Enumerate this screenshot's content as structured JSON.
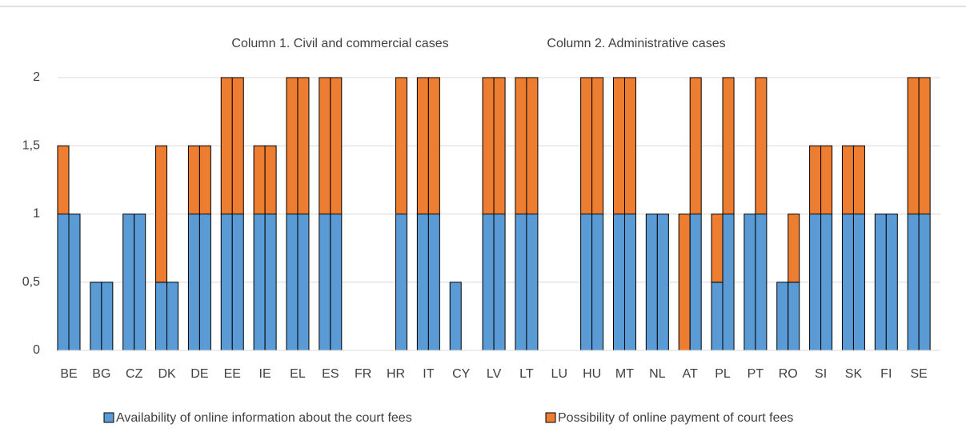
{
  "chart_data": {
    "type": "grouped-stacked-bar",
    "column_labels": [
      "Column 1. Civil and commercial cases",
      "Column 2. Administrative cases"
    ],
    "categories": [
      "BE",
      "BG",
      "CZ",
      "DK",
      "DE",
      "EE",
      "IE",
      "EL",
      "ES",
      "FR",
      "HR",
      "IT",
      "CY",
      "LV",
      "LT",
      "LU",
      "HU",
      "MT",
      "NL",
      "AT",
      "PL",
      "PT",
      "RO",
      "SI",
      "SK",
      "FI",
      "SE"
    ],
    "series": [
      {
        "name": "Availability of online information about the court fees",
        "color": "#5b9bd5",
        "values": [
          [
            1,
            1
          ],
          [
            0.5,
            0.5
          ],
          [
            1,
            1
          ],
          [
            0.5,
            0.5
          ],
          [
            1,
            1
          ],
          [
            1,
            1
          ],
          [
            1,
            1
          ],
          [
            1,
            1
          ],
          [
            1,
            1
          ],
          [
            0,
            0
          ],
          [
            0,
            1
          ],
          [
            1,
            1
          ],
          [
            0.5,
            0
          ],
          [
            1,
            1
          ],
          [
            1,
            1
          ],
          [
            0,
            0
          ],
          [
            1,
            1
          ],
          [
            1,
            1
          ],
          [
            1,
            1
          ],
          [
            0,
            1
          ],
          [
            0.5,
            1
          ],
          [
            1,
            1
          ],
          [
            0.5,
            0.5
          ],
          [
            1,
            1
          ],
          [
            1,
            1
          ],
          [
            1,
            1
          ],
          [
            1,
            1
          ]
        ]
      },
      {
        "name": "Possibility of online payment of court fees",
        "color": "#ed7d31",
        "values": [
          [
            0.5,
            0
          ],
          [
            0,
            0
          ],
          [
            0,
            0
          ],
          [
            1,
            0
          ],
          [
            0.5,
            0.5
          ],
          [
            1,
            1
          ],
          [
            0.5,
            0.5
          ],
          [
            1,
            1
          ],
          [
            1,
            1
          ],
          [
            0,
            0
          ],
          [
            0,
            1
          ],
          [
            1,
            1
          ],
          [
            0,
            0
          ],
          [
            1,
            1
          ],
          [
            1,
            1
          ],
          [
            0,
            0
          ],
          [
            1,
            1
          ],
          [
            1,
            1
          ],
          [
            0,
            0
          ],
          [
            1,
            1
          ],
          [
            0.5,
            1
          ],
          [
            0,
            1
          ],
          [
            0,
            0.5
          ],
          [
            0.5,
            0.5
          ],
          [
            0.5,
            0.5
          ],
          [
            0,
            0
          ],
          [
            1,
            1
          ]
        ]
      }
    ],
    "ylim": [
      0,
      2
    ],
    "yticks": [
      0,
      {
        "value": 0.5,
        "label": "0,5"
      },
      1,
      {
        "value": 1.5,
        "label": "1,5"
      },
      2
    ],
    "grid": true,
    "legend": "bottom"
  }
}
